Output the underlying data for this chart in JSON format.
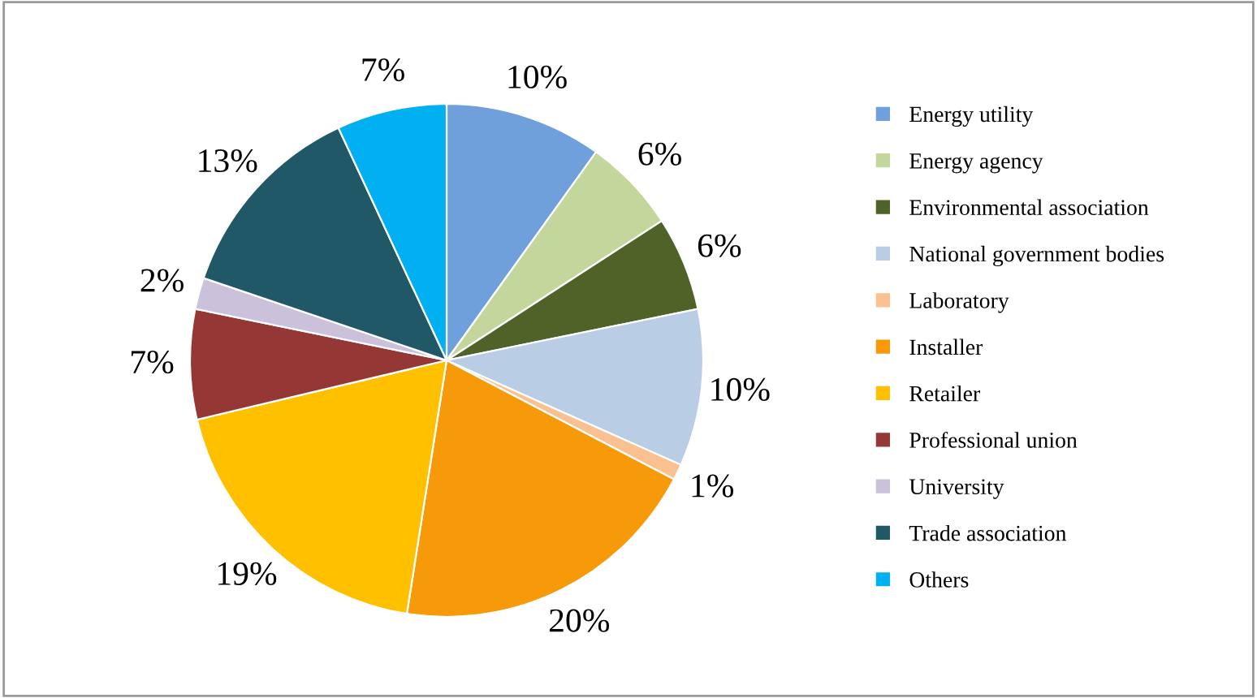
{
  "chart_data": {
    "type": "pie",
    "categories": [
      "Energy utility",
      "Energy agency",
      "Environmental association",
      "National government bodies",
      "Laboratory",
      "Installer",
      "Retailer",
      "Professional union",
      "University",
      "Trade association",
      "Others"
    ],
    "values": [
      10,
      6,
      6,
      10,
      1,
      20,
      19,
      7,
      2,
      13,
      7
    ],
    "colors": [
      "#6fa0dc",
      "#c3d69b",
      "#4f6228",
      "#b9cde5",
      "#fac090",
      "#f79a0a",
      "#ffc000",
      "#953735",
      "#ccc1da",
      "#215868",
      "#00b0f0"
    ],
    "value_labels": [
      "10%",
      "6%",
      "6%",
      "10%",
      "1%",
      "20%",
      "19%",
      "7%",
      "2%",
      "13%",
      "7%"
    ],
    "legend": "right"
  }
}
